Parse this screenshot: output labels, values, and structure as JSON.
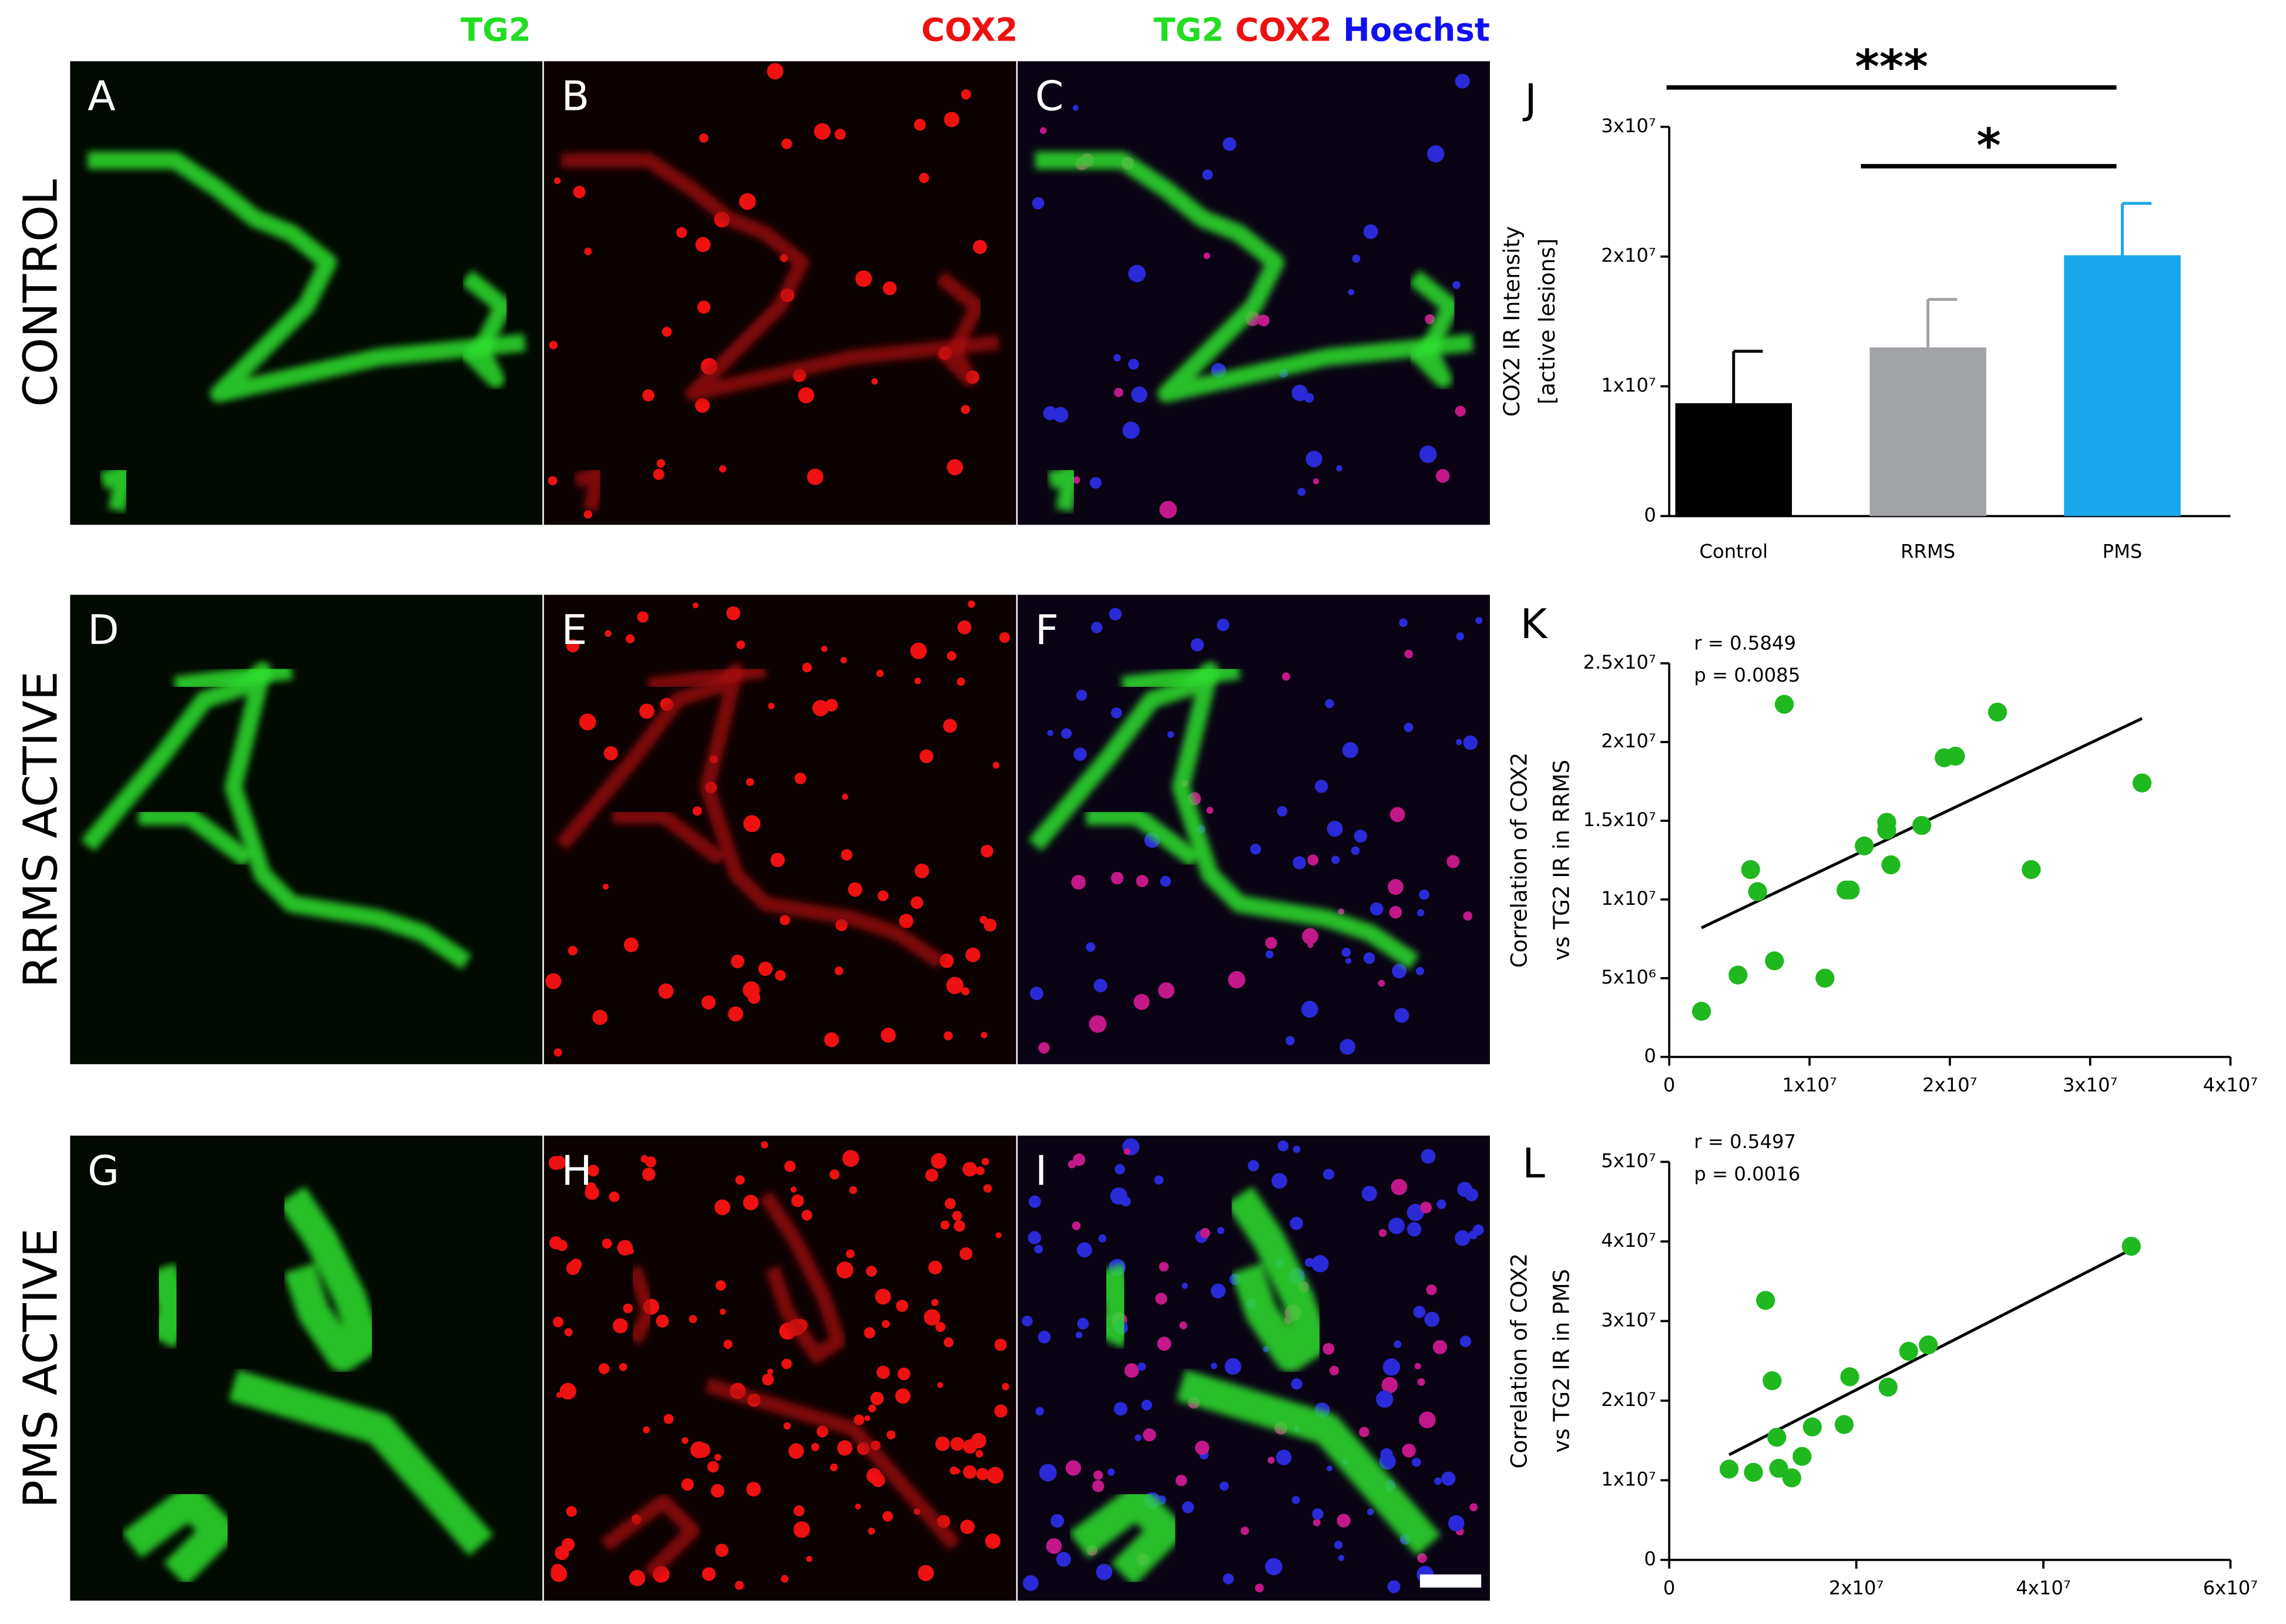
{
  "figure": {
    "column_headers": [
      "TG2",
      "COX2"
    ],
    "merged_header": [
      "TG2",
      "COX2",
      "Hoechst"
    ],
    "row_labels": [
      "CONTROL",
      "RRMS ACTIVE",
      "PMS ACTIVE"
    ],
    "panel_labels": [
      "A",
      "B",
      "C",
      "D",
      "E",
      "F",
      "G",
      "H",
      "I"
    ]
  },
  "chart_data": [
    {
      "type": "bar",
      "panel_label": "J",
      "ylabel": [
        "COX2 IR Intensity",
        "[active lesions]"
      ],
      "categories": [
        "Control",
        "RRMS",
        "PMS"
      ],
      "values": [
        8700000,
        13000000,
        20100000
      ],
      "errors": [
        4000000,
        3700000,
        4000000
      ],
      "colors": [
        "#000000",
        "#a2a3a7",
        "#1aa6ec"
      ],
      "ylim": [
        0,
        30000000
      ],
      "yticks": [
        0,
        {
          "value": 10000000,
          "label": "1x10⁷"
        },
        {
          "value": 20000000,
          "label": "2x10⁷"
        },
        {
          "value": 30000000,
          "label": "3x10⁷"
        }
      ],
      "annotations": [
        "***",
        "*"
      ]
    },
    {
      "type": "scatter",
      "panel_label": "K",
      "ylabel": [
        "Correlation of COX2",
        "vs TG2 IR in RRMS"
      ],
      "annotations": [
        "r = 0.5849",
        "p = 0.0085"
      ],
      "color": "#1fb81f",
      "x": [
        2300000,
        4900000,
        5800000,
        6300000,
        7500000,
        8200000,
        11100000,
        12600000,
        12900000,
        13900000,
        15500000,
        15500000,
        15800000,
        18000000,
        19600000,
        20400000,
        23400000,
        25800000,
        33700000
      ],
      "values": [
        2900000,
        5200000,
        11900000,
        10500000,
        6100000,
        22400000,
        5000000,
        10600000,
        10600000,
        13400000,
        14400000,
        14900000,
        12200000,
        14700000,
        19000000,
        19100000,
        21900000,
        11900000,
        17400000
      ],
      "fit": {
        "x": [
          2300000,
          33700000
        ],
        "y": [
          8200000,
          21500000
        ]
      },
      "xlim": [
        0,
        40000000
      ],
      "xticks": [
        0,
        {
          "value": 10000000,
          "label": "1x10⁷"
        },
        {
          "value": 20000000,
          "label": "2x10⁷"
        },
        {
          "value": 30000000,
          "label": "3x10⁷"
        },
        {
          "value": 40000000,
          "label": "4x10⁷"
        }
      ],
      "ylim": [
        0,
        25000000
      ],
      "yticks": [
        0,
        {
          "value": 5000000,
          "label": "5x10⁶"
        },
        {
          "value": 10000000,
          "label": "1x10⁷"
        },
        {
          "value": 15000000,
          "label": "1.5x10⁷"
        },
        {
          "value": 20000000,
          "label": "2x10⁷"
        },
        {
          "value": 25000000,
          "label": "2.5x10⁷"
        }
      ]
    },
    {
      "type": "scatter",
      "panel_label": "L",
      "ylabel": [
        "Correlation of COX2",
        "vs TG2 IR in PMS"
      ],
      "annotations": [
        "r = 0.5497",
        "p = 0.0016"
      ],
      "color": "#1fb81f",
      "x": [
        6400000,
        9000000,
        10300000,
        11000000,
        11500000,
        11700000,
        13100000,
        14200000,
        15300000,
        18700000,
        19300000,
        23400000,
        25600000,
        27700000,
        49400000
      ],
      "values": [
        11400000,
        11000000,
        32600000,
        22500000,
        15400000,
        11500000,
        10300000,
        13000000,
        16700000,
        17000000,
        23000000,
        21700000,
        26200000,
        27000000,
        39400000
      ],
      "fit": {
        "x": [
          6400000,
          49400000
        ],
        "y": [
          13200000,
          39000000
        ]
      },
      "xlim": [
        0,
        60000000
      ],
      "xticks": [
        0,
        {
          "value": 20000000,
          "label": "2x10⁷"
        },
        {
          "value": 40000000,
          "label": "4x10⁷"
        },
        {
          "value": 60000000,
          "label": "6x10⁷"
        }
      ],
      "ylim": [
        0,
        50000000
      ],
      "yticks": [
        0,
        {
          "value": 10000000,
          "label": "1x10⁷"
        },
        {
          "value": 20000000,
          "label": "2x10⁷"
        },
        {
          "value": 30000000,
          "label": "3x10⁷"
        },
        {
          "value": 40000000,
          "label": "4x10⁷"
        },
        {
          "value": 50000000,
          "label": "5x10⁷"
        }
      ]
    }
  ]
}
